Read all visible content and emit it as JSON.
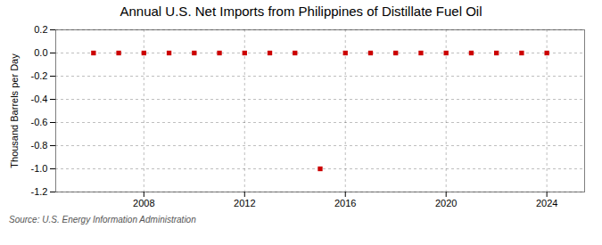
{
  "chart_data": {
    "type": "scatter",
    "title": "Annual U.S. Net Imports from Philippines of Distillate Fuel Oil",
    "ylabel": "Thousand Barrels per Day",
    "source": "Source: U.S. Energy Information Administration",
    "x": [
      2006,
      2007,
      2008,
      2009,
      2010,
      2011,
      2012,
      2013,
      2014,
      2015,
      2016,
      2017,
      2018,
      2019,
      2020,
      2021,
      2022,
      2023,
      2024
    ],
    "values": [
      0,
      0,
      0,
      0,
      0,
      0,
      0,
      0,
      0,
      -1,
      0,
      0,
      0,
      0,
      0,
      0,
      0,
      0,
      0
    ],
    "color": "#cc0000",
    "marker": "square",
    "xlim": [
      2004.5,
      2025.5
    ],
    "xticks": [
      2008,
      2012,
      2016,
      2020,
      2024
    ],
    "ylim": [
      -1.2,
      0.2
    ],
    "yticks": [
      0.2,
      {
        "value": 0,
        "label": "0.0"
      },
      -0.2,
      -0.4,
      -0.6,
      -0.8,
      {
        "value": -1,
        "label": "-1.0"
      },
      -1.2
    ],
    "grid": true
  }
}
